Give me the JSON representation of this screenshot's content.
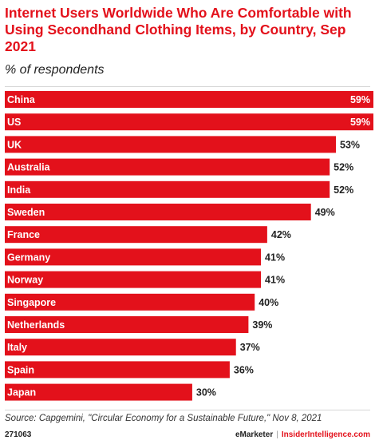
{
  "header": {
    "title": "Internet Users Worldwide Who Are Comfortable with Using Secondhand Clothing Items, by Country, Sep 2021",
    "subtitle": "% of respondents"
  },
  "chart_data": {
    "type": "bar",
    "orientation": "horizontal",
    "title": "Internet Users Worldwide Who Are Comfortable with Using Secondhand Clothing Items, by Country, Sep 2021",
    "subtitle": "% of respondents",
    "categories": [
      "China",
      "US",
      "UK",
      "Australia",
      "India",
      "Sweden",
      "France",
      "Germany",
      "Norway",
      "Singapore",
      "Netherlands",
      "Italy",
      "Spain",
      "Japan"
    ],
    "values": [
      59,
      59,
      53,
      52,
      52,
      49,
      42,
      41,
      41,
      40,
      39,
      37,
      36,
      30
    ],
    "value_labels": [
      "59%",
      "59%",
      "53%",
      "52%",
      "52%",
      "49%",
      "42%",
      "41%",
      "41%",
      "40%",
      "39%",
      "37%",
      "36%",
      "30%"
    ],
    "xlim": [
      0,
      59
    ],
    "grid": false,
    "bar_color": "#e3111b"
  },
  "footer": {
    "source": "Source: Capgemini, \"Circular Economy for a Sustainable Future,\" Nov 8, 2021",
    "code": "271063",
    "brand": "eMarketer",
    "separator": "|",
    "site": "InsiderIntelligence.com"
  },
  "colors": {
    "accent": "#e3111b",
    "text": "#222222"
  }
}
